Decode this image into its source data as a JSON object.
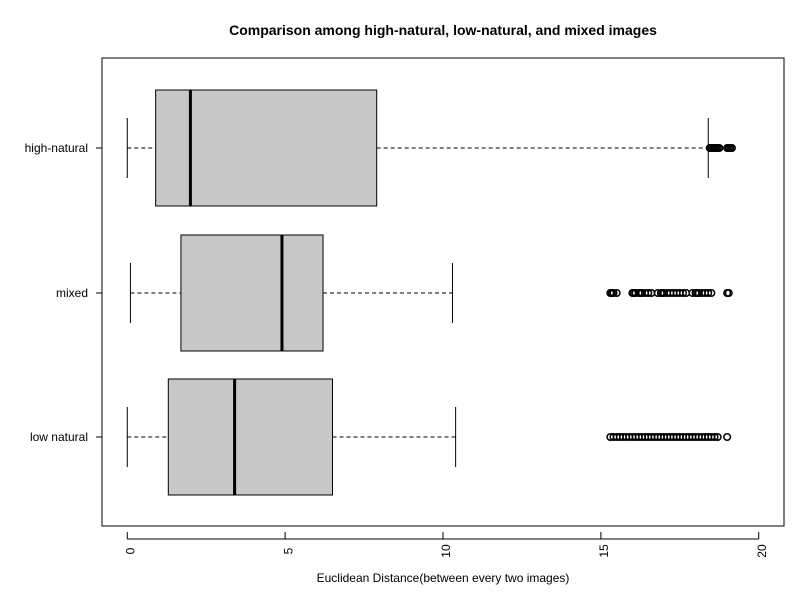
{
  "chart_data": {
    "type": "boxplot",
    "orientation": "horizontal",
    "title": "Comparison among high-natural, low-natural, and mixed images",
    "xlabel": "Euclidean Distance(between every two images)",
    "ylabel": "",
    "xlim": [
      -0.8,
      20.8
    ],
    "xticks": [
      0,
      5,
      10,
      15,
      20
    ],
    "grid": false,
    "legend": "none",
    "box_fill": "#c8c8c8",
    "series": [
      {
        "name": "high-natural",
        "min": 0.0,
        "q1": 0.9,
        "median": 2.0,
        "q3": 7.9,
        "max": 18.4,
        "outliers": [
          18.45,
          18.5,
          18.55,
          18.6,
          18.65,
          18.7,
          18.75,
          19.0,
          19.05,
          19.1,
          19.15
        ]
      },
      {
        "name": "mixed",
        "min": 0.1,
        "q1": 1.7,
        "median": 4.9,
        "q3": 6.2,
        "max": 10.3,
        "outliers": [
          15.3,
          15.35,
          15.4,
          15.5,
          16.0,
          16.05,
          16.1,
          16.2,
          16.25,
          16.3,
          16.4,
          16.5,
          16.6,
          16.8,
          16.9,
          16.95,
          17.0,
          17.1,
          17.2,
          17.3,
          17.4,
          17.5,
          17.6,
          17.7,
          17.9,
          18.0,
          18.05,
          18.1,
          18.2,
          18.3,
          18.4,
          18.5,
          19.0,
          19.05
        ]
      },
      {
        "name": "low natural",
        "min": 0.0,
        "q1": 1.3,
        "median": 3.4,
        "q3": 6.5,
        "max": 10.4,
        "outliers": [
          15.3,
          15.4,
          15.5,
          15.6,
          15.7,
          15.8,
          15.9,
          16.0,
          16.1,
          16.2,
          16.3,
          16.4,
          16.5,
          16.6,
          16.7,
          16.8,
          16.9,
          17.0,
          17.1,
          17.2,
          17.3,
          17.4,
          17.5,
          17.6,
          17.7,
          17.8,
          17.9,
          18.0,
          18.1,
          18.2,
          18.3,
          18.4,
          18.5,
          18.6,
          18.7,
          19.0
        ]
      }
    ]
  }
}
